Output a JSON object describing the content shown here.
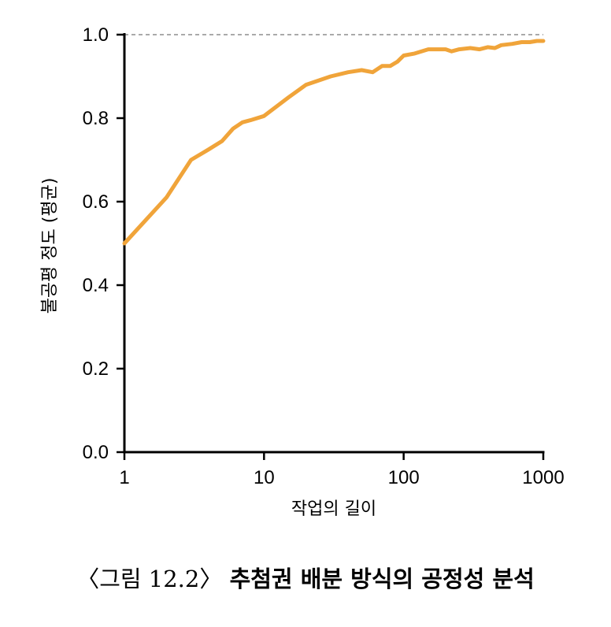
{
  "figure": {
    "caption_prefix": "〈그림 12.2〉",
    "caption_title": "추첨권 배분 방식의 공정성 분석"
  },
  "chart_data": {
    "type": "line",
    "xlabel": "작업의 길이",
    "ylabel": "불공평 정도 (평균)",
    "x_scale": "log",
    "xlim": [
      1,
      1000
    ],
    "ylim": [
      0,
      1.0
    ],
    "x_ticks": [
      1,
      10,
      100,
      1000
    ],
    "x_tick_labels": [
      "1",
      "10",
      "100",
      "1000"
    ],
    "y_ticks": [
      0,
      0.2,
      0.4,
      0.6,
      0.8,
      1.0
    ],
    "y_tick_labels": [
      "0.0",
      "0.2",
      "0.4",
      "0.6",
      "0.8",
      "1.0"
    ],
    "grid": false,
    "reference_line": {
      "y": 1.0,
      "style": "dashed"
    },
    "series": [
      {
        "color": "#f0a43a",
        "x": [
          1,
          2,
          3,
          4,
          5,
          6,
          7,
          8,
          10,
          15,
          20,
          30,
          40,
          50,
          60,
          70,
          80,
          90,
          100,
          120,
          150,
          200,
          220,
          250,
          300,
          350,
          400,
          450,
          500,
          600,
          700,
          800,
          900,
          1000
        ],
        "y": [
          0.5,
          0.61,
          0.7,
          0.725,
          0.745,
          0.775,
          0.79,
          0.795,
          0.805,
          0.85,
          0.88,
          0.9,
          0.91,
          0.915,
          0.91,
          0.925,
          0.925,
          0.935,
          0.95,
          0.955,
          0.965,
          0.965,
          0.96,
          0.965,
          0.968,
          0.965,
          0.97,
          0.968,
          0.975,
          0.978,
          0.982,
          0.982,
          0.985,
          0.985
        ]
      }
    ]
  }
}
